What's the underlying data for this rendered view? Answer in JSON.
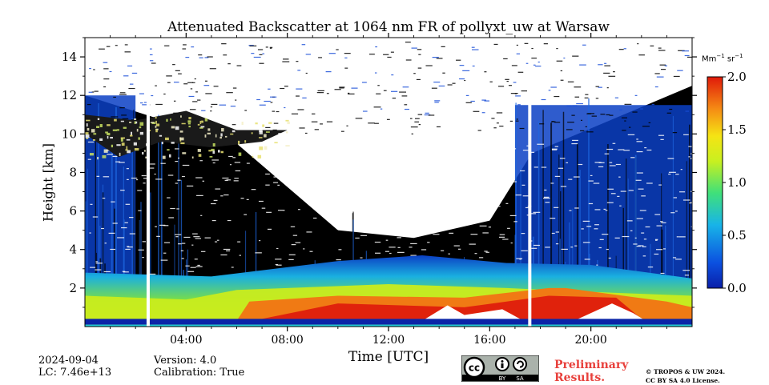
{
  "chart_data": {
    "type": "heatmap",
    "title": "Attenuated Backscatter at 1064 nm FR of pollyxt_uw at Warsaw",
    "xlabel": "Time [UTC]",
    "ylabel": "Height [km]",
    "x_ticks": [
      "04:00",
      "08:00",
      "12:00",
      "16:00",
      "20:00"
    ],
    "y_ticks": [
      "2",
      "4",
      "6",
      "8",
      "10",
      "12",
      "14"
    ],
    "xlim": [
      "00:00",
      "24:00"
    ],
    "ylim": [
      0,
      15
    ],
    "colorbar": {
      "label_main": "Mm",
      "label_exp1": "−1",
      "label_mid": "sr",
      "label_exp2": "−1",
      "ticks": [
        "0.0",
        "0.5",
        "1.0",
        "1.5",
        "2.0"
      ],
      "range": [
        0.0,
        2.0
      ],
      "colormap": "jet"
    },
    "data_gaps_utc": [
      "02:30",
      "17:35"
    ],
    "features": {
      "surface_layer_km": [
        0.1,
        0.4
      ],
      "boundary_layer_top_km": 2.3,
      "afternoon_aerosol_peak_utc": [
        "06:00",
        "19:00"
      ],
      "cirrus_layer_km": [
        8.8,
        11.5
      ],
      "cirrus_time_utc": [
        "00:00",
        "08:00"
      ]
    },
    "colors": {
      "low": "#0b24a8",
      "mid": "#4ade2a",
      "high": "#e8200a",
      "background": "#000000",
      "noise": "#ffffff"
    }
  },
  "footer": {
    "date": "2024-09-04",
    "lc": "LC: 7.46e+13",
    "version": "Version: 4.0",
    "calibration": "Calibration: True",
    "prelim_line1": "Preliminary",
    "prelim_line2": "Results.",
    "copyright_line1": "© TROPOS & UW 2024.",
    "copyright_line2": "CC BY SA 4.0 License.",
    "cc_by": "BY",
    "cc_sa": "SA"
  }
}
